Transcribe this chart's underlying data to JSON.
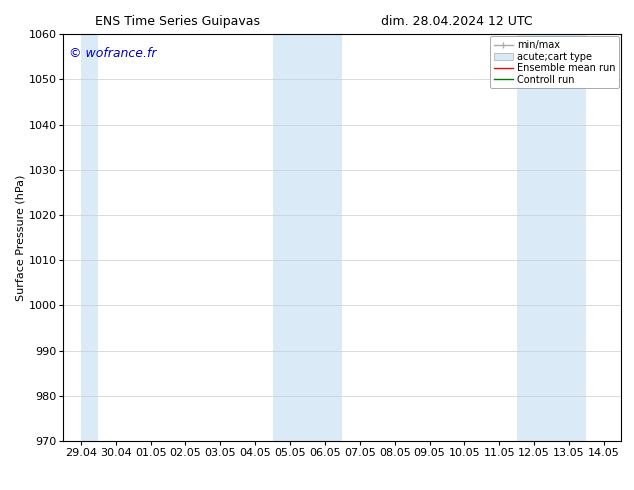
{
  "title_left": "ENS Time Series Guipavas",
  "title_right": "dim. 28.04.2024 12 UTC",
  "ylabel": "Surface Pressure (hPa)",
  "watermark": "© wofrance.fr",
  "watermark_color": "#0000cc",
  "ylim": [
    970,
    1060
  ],
  "yticks": [
    970,
    980,
    990,
    1000,
    1010,
    1020,
    1030,
    1040,
    1050,
    1060
  ],
  "xtick_labels": [
    "29.04",
    "30.04",
    "01.05",
    "02.05",
    "03.05",
    "04.05",
    "05.05",
    "06.05",
    "07.05",
    "08.05",
    "09.05",
    "10.05",
    "11.05",
    "12.05",
    "13.05",
    "14.05"
  ],
  "background_color": "#ffffff",
  "plot_bg_color": "#ffffff",
  "shaded_bands": [
    {
      "xstart": 0.0,
      "xend": 0.5,
      "color": "#dbeaf7"
    },
    {
      "xstart": 5.5,
      "xend": 7.5,
      "color": "#dbeaf7"
    },
    {
      "xstart": 12.5,
      "xend": 14.5,
      "color": "#dbeaf7"
    }
  ],
  "legend_entries": [
    {
      "label": "min/max",
      "color": "#aaaaaa",
      "lw": 1,
      "type": "errorbar"
    },
    {
      "label": "acute;cart type",
      "color": "#dbeaf7",
      "lw": 8,
      "type": "rect"
    },
    {
      "label": "Ensemble mean run",
      "color": "#ff0000",
      "lw": 1,
      "type": "line"
    },
    {
      "label": "Controll run",
      "color": "#007700",
      "lw": 1,
      "type": "line"
    }
  ],
  "grid_color": "#cccccc",
  "tick_color": "#000000",
  "title_fontsize": 9,
  "font_size": 8
}
